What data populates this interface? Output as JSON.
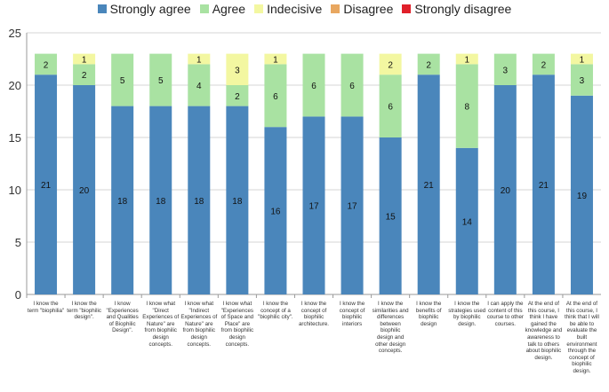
{
  "chart_data": {
    "type": "bar",
    "stacked": true,
    "ylim": [
      0,
      25
    ],
    "yticks": [
      0,
      5,
      10,
      15,
      20,
      25
    ],
    "grid": true,
    "legend_position": "top",
    "categories": [
      "I know the term \"biophilia\"",
      "I know the term \"biophilic design\".",
      "I know \"Experiences and Qualities of Biophilic Design\".",
      "I know what \"Direct Experiences of Nature\" are from biophilic design concepts.",
      "I know what \"Indirect Experiences of Nature\" are from biophilic design concepts.",
      "I know what \"Experiences of Space and Place\" are from biophilic design concepts.",
      "I know the concept of a \"biophilic city\".",
      "I know the concept of biophilic architecture.",
      "I know the concept of biophilic interiors",
      "I know the similarities and differences between biophilic design and other design concepts.",
      "I know the benefits of biophilic design",
      "I know the strategies used by biophilic design.",
      "I can apply the content of this course to other courses.",
      "At the end of this course, I think I have gained the knowledge and awareness to talk to others about biophilic design.",
      "At the end of this course, I think that I will be able to evaluate the built environment through the concept of biophilic design."
    ],
    "series": [
      {
        "name": "Strongly agree",
        "color": "#4a86bb",
        "values": [
          21,
          20,
          18,
          18,
          18,
          18,
          16,
          17,
          17,
          15,
          21,
          14,
          20,
          21,
          19
        ]
      },
      {
        "name": "Agree",
        "color": "#a9e2a2",
        "values": [
          2,
          2,
          5,
          5,
          4,
          2,
          6,
          6,
          6,
          6,
          2,
          8,
          3,
          2,
          3
        ]
      },
      {
        "name": "Indecisive",
        "color": "#f3f7a1",
        "values": [
          0,
          1,
          0,
          0,
          1,
          3,
          1,
          0,
          0,
          2,
          0,
          1,
          0,
          0,
          1
        ]
      },
      {
        "name": "Disagree",
        "color": "#e8a760",
        "values": [
          0,
          0,
          0,
          0,
          0,
          0,
          0,
          0,
          0,
          0,
          0,
          0,
          0,
          0,
          0
        ]
      },
      {
        "name": "Strongly disagree",
        "color": "#e0202a",
        "values": [
          0,
          0,
          0,
          0,
          0,
          0,
          0,
          0,
          0,
          0,
          0,
          0,
          0,
          0,
          0
        ]
      }
    ]
  }
}
